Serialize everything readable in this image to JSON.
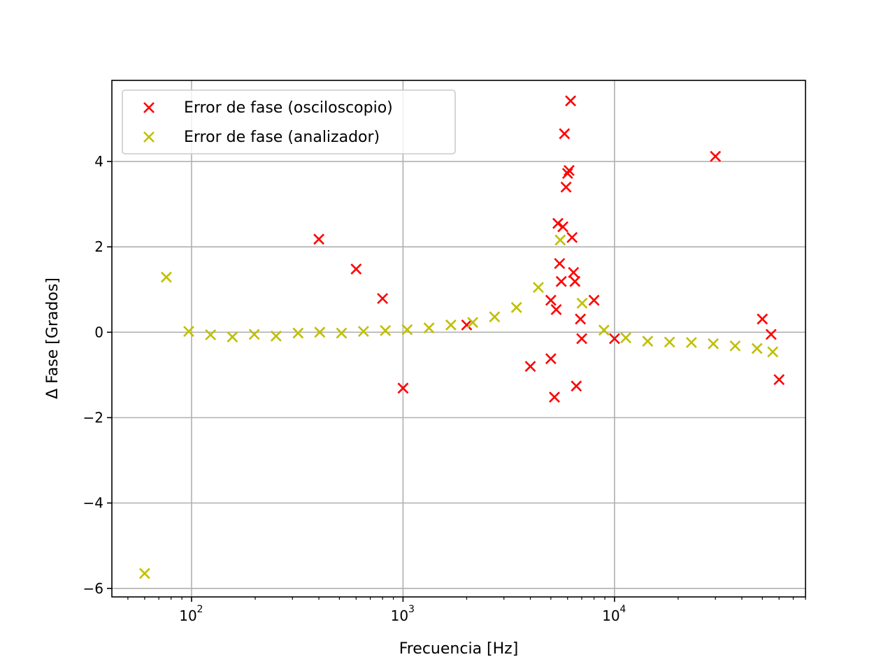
{
  "chart_data": {
    "type": "scatter",
    "title": "",
    "xlabel": "Frecuencia [Hz]",
    "ylabel": "Δ Fase [Grados]",
    "xscale": "log",
    "xlim": [
      42,
      80000
    ],
    "ylim": [
      -6.2,
      5.9
    ],
    "grid": true,
    "legend_position": "top-left",
    "x_tick_labels": [
      "10",
      "10",
      "10"
    ],
    "x_tick_exponents": [
      "2",
      "3",
      "4"
    ],
    "x_tick_values": [
      100,
      1000,
      10000
    ],
    "y_tick_labels": [
      "−6",
      "−4",
      "−2",
      "0",
      "2",
      "4"
    ],
    "y_tick_values": [
      -6,
      -4,
      -2,
      0,
      2,
      4
    ],
    "series": [
      {
        "name": "Error de fase (osciloscopio)",
        "color": "#ff0000",
        "marker": "x",
        "points": [
          [
            400,
            2.18
          ],
          [
            600,
            1.48
          ],
          [
            800,
            0.79
          ],
          [
            1000,
            -1.31
          ],
          [
            2000,
            0.17
          ],
          [
            4000,
            -0.8
          ],
          [
            5000,
            0.75
          ],
          [
            5000,
            -0.62
          ],
          [
            5200,
            -1.52
          ],
          [
            5300,
            0.53
          ],
          [
            5400,
            2.55
          ],
          [
            5500,
            1.61
          ],
          [
            5600,
            1.19
          ],
          [
            5700,
            2.47
          ],
          [
            5800,
            4.65
          ],
          [
            5900,
            3.4
          ],
          [
            6000,
            3.72
          ],
          [
            6100,
            3.79
          ],
          [
            6200,
            5.42
          ],
          [
            6300,
            2.22
          ],
          [
            6400,
            1.4
          ],
          [
            6500,
            1.19
          ],
          [
            6600,
            -1.26
          ],
          [
            6900,
            0.31
          ],
          [
            7000,
            -0.15
          ],
          [
            8000,
            0.75
          ],
          [
            10000,
            -0.15
          ],
          [
            30000,
            4.12
          ],
          [
            50000,
            0.31
          ],
          [
            55000,
            -0.05
          ],
          [
            60000,
            -1.11
          ]
        ]
      },
      {
        "name": "Error de fase (analizador)",
        "color": "#bfbf00",
        "marker": "x",
        "points": [
          [
            60,
            -5.65
          ],
          [
            76,
            1.29
          ],
          [
            97,
            0.02
          ],
          [
            123,
            -0.06
          ],
          [
            156,
            -0.11
          ],
          [
            198,
            -0.05
          ],
          [
            251,
            -0.09
          ],
          [
            319,
            -0.02
          ],
          [
            404,
            0.0
          ],
          [
            512,
            -0.02
          ],
          [
            650,
            0.02
          ],
          [
            825,
            0.04
          ],
          [
            1046,
            0.06
          ],
          [
            1327,
            0.1
          ],
          [
            1684,
            0.17
          ],
          [
            2136,
            0.23
          ],
          [
            2710,
            0.36
          ],
          [
            3439,
            0.58
          ],
          [
            4364,
            1.05
          ],
          [
            5537,
            2.16
          ],
          [
            7025,
            0.68
          ],
          [
            8914,
            0.05
          ],
          [
            11310,
            -0.13
          ],
          [
            14350,
            -0.21
          ],
          [
            18210,
            -0.23
          ],
          [
            23100,
            -0.24
          ],
          [
            29310,
            -0.27
          ],
          [
            37190,
            -0.32
          ],
          [
            47180,
            -0.38
          ],
          [
            56000,
            -0.46
          ]
        ]
      }
    ]
  }
}
